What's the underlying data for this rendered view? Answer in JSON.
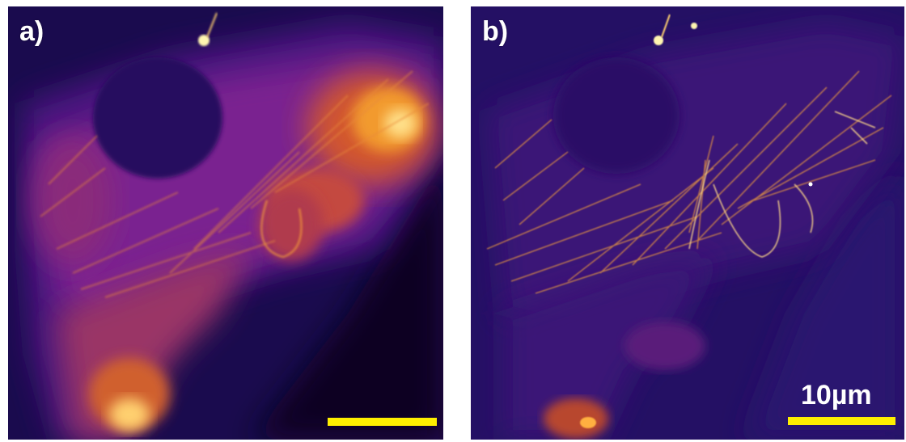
{
  "panels": [
    {
      "label": "a)",
      "colormap": "inferno",
      "has_scale_label": false
    },
    {
      "label": "b)",
      "colormap": "inferno",
      "has_scale_label": true
    }
  ],
  "scale_bar": {
    "label": "10µm",
    "color": "#ffef00"
  },
  "colors": {
    "background_dark": "#140a44",
    "mid_purple": "#5a1a8a",
    "orange": "#e8702a",
    "bright_yellow": "#fff5a8"
  }
}
